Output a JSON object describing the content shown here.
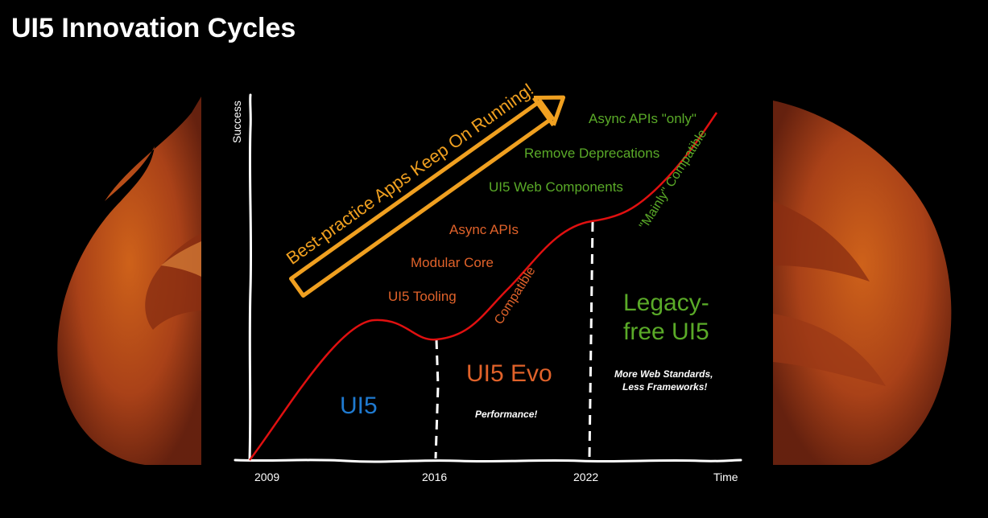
{
  "slide": {
    "title": "UI5 Innovation Cycles"
  },
  "axes": {
    "y_label": "Success",
    "x_end_label": "Time",
    "ticks": [
      "2009",
      "2016",
      "2022"
    ]
  },
  "banner": {
    "text": "Best-practice Apps Keep On Running!"
  },
  "eras": {
    "ui5": {
      "name": "UI5"
    },
    "evo": {
      "name": "UI5 Evo",
      "note": "Performance!",
      "milestones": [
        "UI5 Tooling",
        "Modular Core",
        "Async APIs"
      ],
      "compat_label": "Compatible"
    },
    "legacy_free": {
      "name_line1": "Legacy-",
      "name_line2": "free UI5",
      "note_line1": "More Web Standards,",
      "note_line2": "Less Frameworks!",
      "milestones": [
        "UI5 Web Components",
        "Remove Deprecations",
        "Async APIs \"only\""
      ],
      "compat_label": "\"Mainly\" Compatible"
    }
  },
  "colors": {
    "background": "#000000",
    "curve": "#e01010",
    "orange": "#e0622a",
    "green": "#5aaa28",
    "blue": "#1f7ad0",
    "banner": "#f0a020",
    "phoenix": "#c5501a"
  }
}
